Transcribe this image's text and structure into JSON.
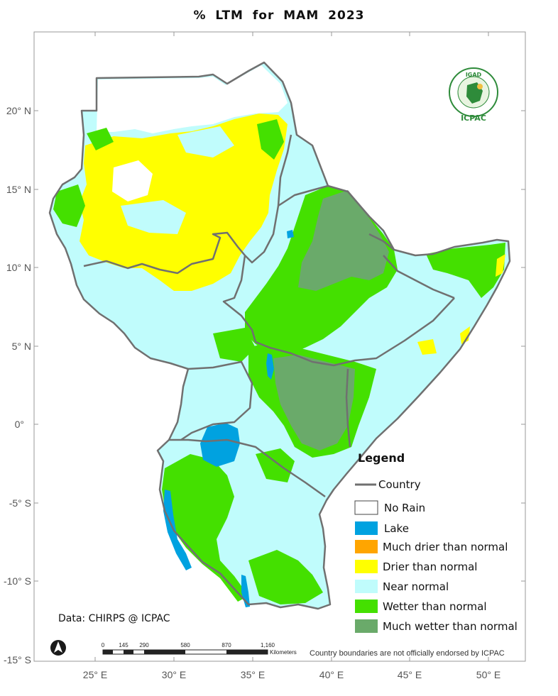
{
  "title": "% LTM   for MAM 2023",
  "lat_labels": [
    "20° N",
    "15° N",
    "10° N",
    "5° N",
    "0°",
    "-5° S",
    "-10° S",
    "-15° S"
  ],
  "lon_labels": [
    "25° E",
    "30° E",
    "35° E",
    "40° E",
    "45° E",
    "50° E"
  ],
  "legend": {
    "title": "Legend",
    "country_label": "Country",
    "items": [
      {
        "label": "No Rain",
        "color": "#ffffff"
      },
      {
        "label": "Lake",
        "color": "#00a2e0"
      },
      {
        "label": "Much drier than normal",
        "color": "#ffa500"
      },
      {
        "label": "Drier than normal",
        "color": "#ffff00"
      },
      {
        "label": "Near normal",
        "color": "#c0fcfc"
      },
      {
        "label": "Wetter than normal",
        "color": "#44e000"
      },
      {
        "label": "Much wetter than normal",
        "color": "#6aaa6a"
      }
    ]
  },
  "credit": "Data: CHIRPS @ ICPAC",
  "scale": {
    "ticks": [
      "0",
      "145",
      "290",
      "580",
      "870",
      "1,160"
    ],
    "unit": "Kilometers"
  },
  "note": "Country boundaries are not officially endorsed by ICPAC",
  "logo": {
    "top": "IGAD",
    "bottom": "ICPAC"
  },
  "colors": {
    "border": "#707070",
    "no_rain": "#ffffff",
    "lake": "#00a2e0",
    "drier": "#ffff00",
    "near": "#c0fcfc",
    "wetter": "#44e000",
    "much_wetter": "#6aaa6a",
    "logo": "#2e8b3a"
  }
}
